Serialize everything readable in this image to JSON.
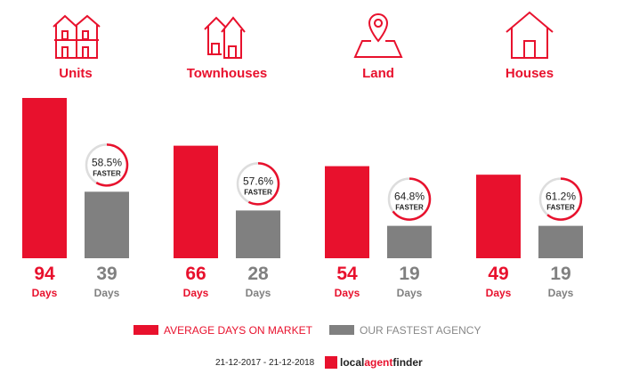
{
  "colors": {
    "red": "#e8112d",
    "grey": "#808080"
  },
  "chart_data": {
    "type": "bar",
    "categories": [
      "Units",
      "Townhouses",
      "Land",
      "Houses"
    ],
    "series": [
      {
        "name": "AVERAGE DAYS ON MARKET",
        "values": [
          94,
          66,
          54,
          49
        ]
      },
      {
        "name": "OUR FASTEST AGENCY",
        "values": [
          39,
          28,
          19,
          19
        ]
      }
    ],
    "faster": [
      "58.5%",
      "57.6%",
      "64.8%",
      "61.2%"
    ],
    "faster_fraction": [
      0.585,
      0.576,
      0.648,
      0.612
    ],
    "faster_label": "FASTER",
    "unit_label": "Days",
    "legend_position": "bottom"
  },
  "footer": {
    "date_range": "21-12-2017 - 21-12-2018",
    "logo_text": "localagentfinder"
  }
}
